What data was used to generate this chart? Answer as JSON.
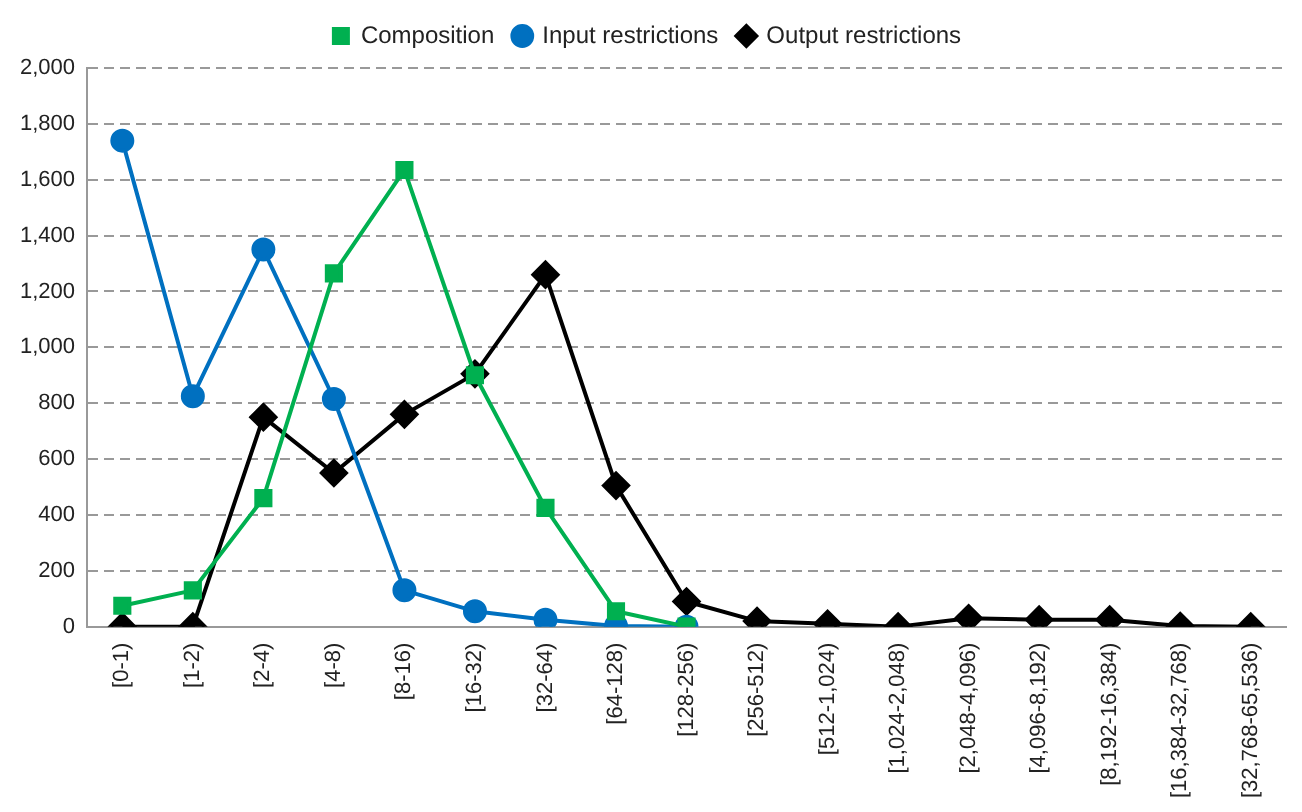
{
  "chart_data": {
    "type": "line",
    "categories": [
      "[0-1)",
      "[1-2)",
      "[2-4)",
      "[4-8)",
      "[8-16)",
      "[16-32)",
      "[32-64)",
      "[64-128)",
      "[128-256)",
      "[256-512)",
      "[512-1,024)",
      "[1,024-2,048)",
      "[2,048-4,096)",
      "[4,096-8,192)",
      "[8,192-16,384)",
      "[16,384-32,768)",
      "[32,768-65,536)"
    ],
    "series": [
      {
        "name": "Composition",
        "color": "#00b050",
        "marker": "square",
        "values": [
          75,
          130,
          460,
          1265,
          1635,
          900,
          425,
          55,
          0,
          null,
          null,
          null,
          null,
          null,
          null,
          null,
          null
        ]
      },
      {
        "name": "Input restrictions",
        "color": "#0070c0",
        "marker": "circle",
        "values": [
          1740,
          825,
          1350,
          815,
          130,
          55,
          25,
          2,
          0,
          null,
          null,
          null,
          null,
          null,
          null,
          null,
          null
        ]
      },
      {
        "name": "Output restrictions",
        "color": "#000000",
        "marker": "diamond",
        "values": [
          0,
          0,
          750,
          550,
          760,
          905,
          1260,
          505,
          90,
          20,
          10,
          0,
          30,
          25,
          25,
          2,
          0
        ]
      }
    ],
    "ylim": [
      0,
      2000
    ],
    "yticks": [
      {
        "value": 0,
        "label": "0"
      },
      {
        "value": 200,
        "label": "200"
      },
      {
        "value": 400,
        "label": "400"
      },
      {
        "value": 600,
        "label": "600"
      },
      {
        "value": 800,
        "label": "800"
      },
      {
        "value": 1000,
        "label": "1,000"
      },
      {
        "value": 1200,
        "label": "1,200"
      },
      {
        "value": 1400,
        "label": "1,400"
      },
      {
        "value": 1600,
        "label": "1,600"
      },
      {
        "value": 1800,
        "label": "1,800"
      },
      {
        "value": 2000,
        "label": "2,000"
      }
    ],
    "grid": "y",
    "legend": "top",
    "line_style": "solid"
  }
}
